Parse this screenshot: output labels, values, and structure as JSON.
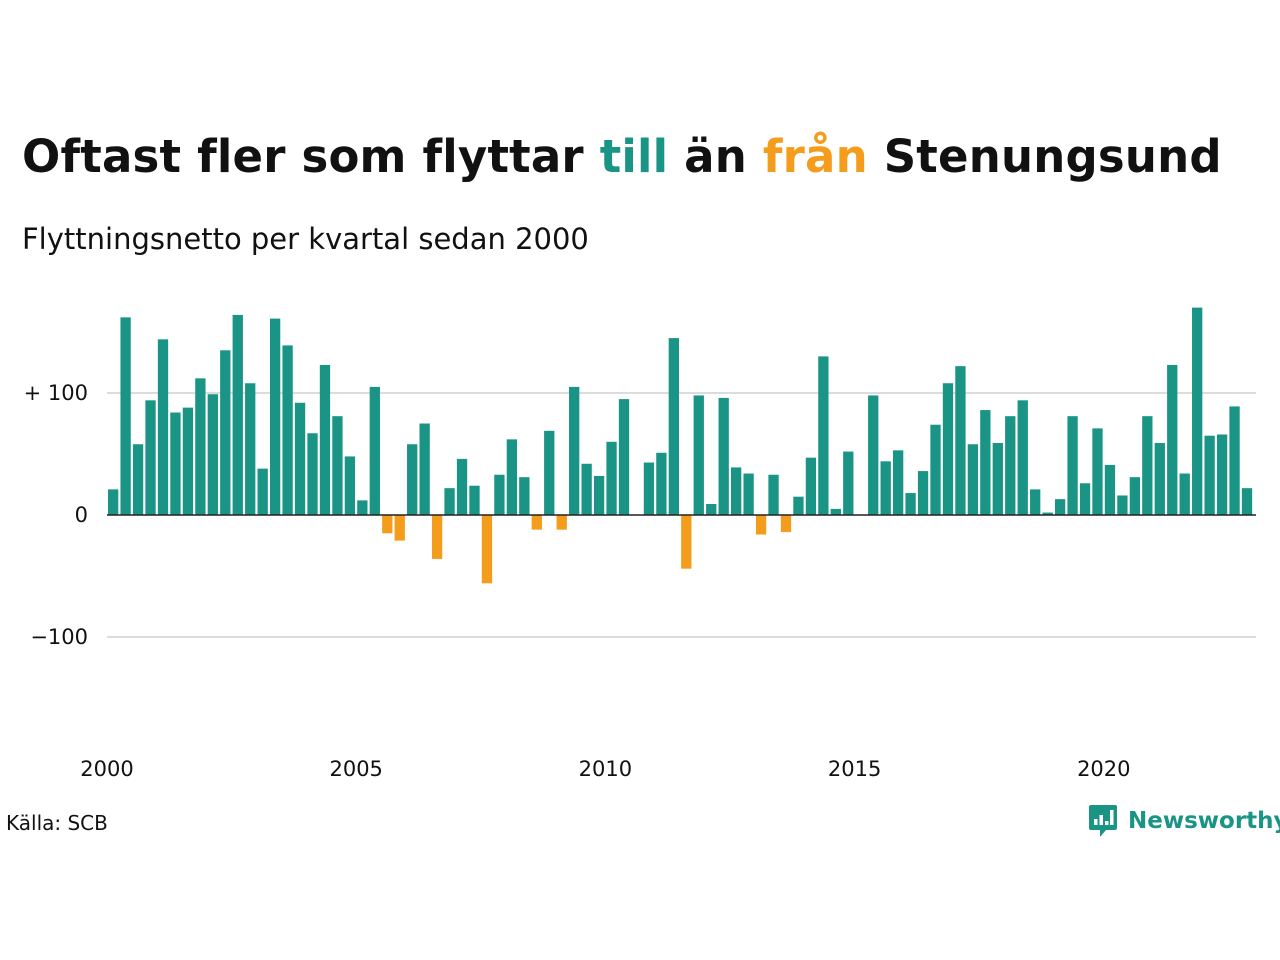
{
  "title": {
    "part1": "Oftast fler som flyttar ",
    "highlight_pos": "till",
    "part2": " än ",
    "highlight_neg": "från",
    "part3": " Stenungsund"
  },
  "subtitle": "Flyttningsnetto per kvartal sedan 2000",
  "source": "Källa: SCB",
  "brand": "Newsworthy",
  "colors": {
    "positive": "#1a9485",
    "negative": "#f49c1b",
    "grid": "#dcdcdc",
    "axis": "#222222"
  },
  "icons": {
    "logo": "newsworthy-logo-icon"
  },
  "chart_data": {
    "type": "bar",
    "x_start": 2000,
    "x_step": 0.25,
    "y_ticks": [
      {
        "value": 100,
        "label": "+ 100"
      },
      {
        "value": 0,
        "label": "0"
      },
      {
        "value": -100,
        "label": "−100"
      }
    ],
    "x_ticks": [
      {
        "value": 2000,
        "label": "2000"
      },
      {
        "value": 2005,
        "label": "2005"
      },
      {
        "value": 2010,
        "label": "2010"
      },
      {
        "value": 2015,
        "label": "2015"
      },
      {
        "value": 2020,
        "label": "2020"
      }
    ],
    "ylim": [
      -200,
      180
    ],
    "grid": true,
    "legend": "none",
    "values": [
      21,
      162,
      58,
      94,
      144,
      84,
      88,
      112,
      99,
      135,
      164,
      108,
      38,
      161,
      139,
      92,
      67,
      123,
      81,
      48,
      12,
      105,
      -15,
      -21,
      58,
      75,
      -36,
      22,
      46,
      24,
      -56,
      33,
      62,
      31,
      -12,
      69,
      -12,
      105,
      42,
      32,
      60,
      95,
      0,
      43,
      51,
      145,
      -44,
      98,
      9,
      96,
      39,
      34,
      -16,
      33,
      -14,
      15,
      47,
      130,
      5,
      52,
      0,
      98,
      44,
      53,
      18,
      36,
      74,
      108,
      122,
      58,
      86,
      59,
      81,
      94,
      21,
      2,
      13,
      81,
      26,
      71,
      41,
      16,
      31,
      81,
      59,
      123,
      34,
      170,
      65,
      66,
      89,
      22
    ]
  }
}
